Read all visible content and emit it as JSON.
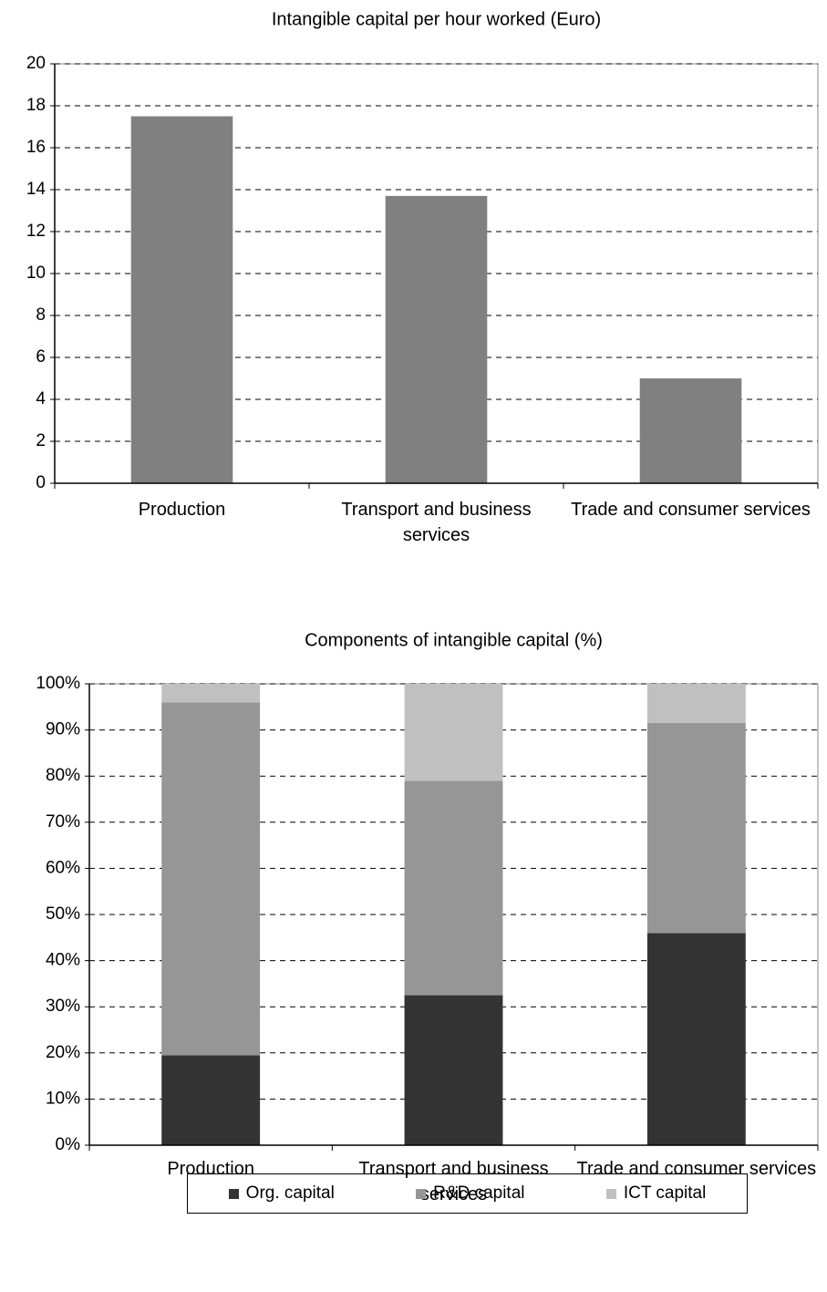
{
  "chart_data": [
    {
      "type": "bar",
      "title": "Intangible capital per hour worked (Euro)",
      "categories": [
        "Production",
        "Transport and business services",
        "Trade and consumer services"
      ],
      "values": [
        17.5,
        13.7,
        5.0
      ],
      "color": "#808080",
      "ylim": [
        0,
        20
      ],
      "yticks": [
        0,
        2,
        4,
        6,
        8,
        10,
        12,
        14,
        16,
        18,
        20
      ],
      "grid": true
    },
    {
      "type": "stacked_bar",
      "title": "Components of intangible capital (%)",
      "categories": [
        "Production",
        "Transport and business services",
        "Trade and consumer services"
      ],
      "series": [
        {
          "name": "Org. capital",
          "color": "#333333",
          "values": [
            19.5,
            32.5,
            46
          ]
        },
        {
          "name": "R&D capital",
          "color": "#969696",
          "values": [
            76.5,
            46.5,
            45.5
          ]
        },
        {
          "name": "ICT capital",
          "color": "#c0c0c0",
          "values": [
            4,
            21,
            8.5
          ]
        }
      ],
      "ylim": [
        0,
        100
      ],
      "yticks": [
        {
          "value": 0,
          "label": "0%"
        },
        {
          "value": 10,
          "label": "10%"
        },
        {
          "value": 20,
          "label": "20%"
        },
        {
          "value": 30,
          "label": "30%"
        },
        {
          "value": 40,
          "label": "40%"
        },
        {
          "value": 50,
          "label": "50%"
        },
        {
          "value": 60,
          "label": "60%"
        },
        {
          "value": 70,
          "label": "70%"
        },
        {
          "value": 80,
          "label": "80%"
        },
        {
          "value": 90,
          "label": "90%"
        },
        {
          "value": 100,
          "label": "100%"
        }
      ],
      "grid": true,
      "legend": "bottom"
    }
  ]
}
